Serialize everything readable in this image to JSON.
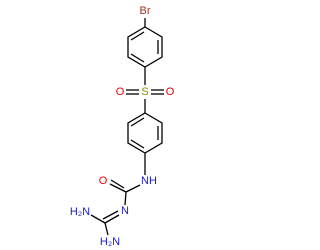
{
  "nodes": [
    {
      "label": "Br"
    },
    {
      "label": "S"
    },
    {
      "label": "O"
    },
    {
      "label": "O"
    },
    {
      "label": "O"
    },
    {
      "label": "NH"
    },
    {
      "label": "N"
    },
    {
      "label": "H₂N"
    },
    {
      "label": "H₂N"
    }
  ]
}
